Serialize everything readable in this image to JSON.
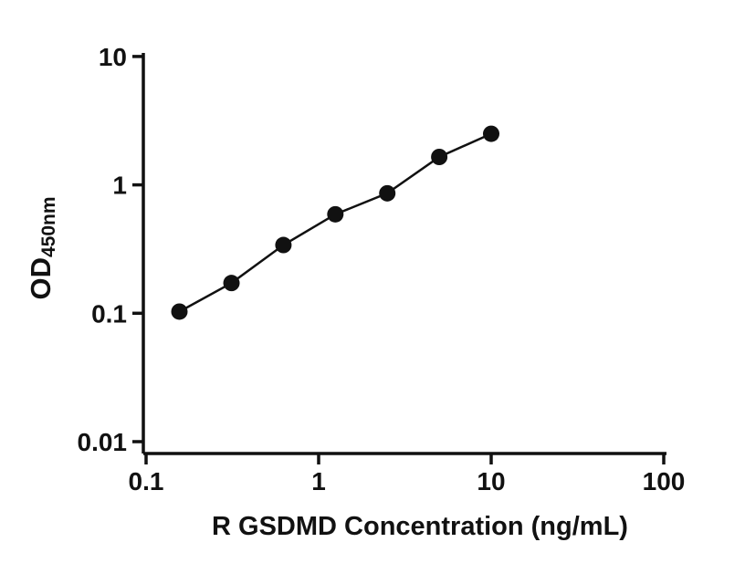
{
  "chart_data": {
    "type": "scatter",
    "title": "",
    "xlabel": "R GSDMD Concentration (ng/mL)",
    "ylabel": "OD",
    "ylabel_subscript": "450nm",
    "x_scale": "log",
    "y_scale": "log",
    "xlim": [
      0.1,
      100
    ],
    "ylim": [
      0.01,
      10
    ],
    "x_ticks": [
      "0.1",
      "1",
      "10",
      "100"
    ],
    "x_tick_values": [
      0.1,
      1,
      10,
      100
    ],
    "y_ticks": [
      "0.01",
      "0.1",
      "1",
      "10"
    ],
    "y_tick_values": [
      0.01,
      0.1,
      1,
      10
    ],
    "grid": "off",
    "legend": "none",
    "line": true,
    "x": [
      0.156,
      0.3125,
      0.625,
      1.25,
      2.5,
      5,
      10
    ],
    "y": [
      0.103,
      0.172,
      0.34,
      0.59,
      0.86,
      1.65,
      2.5
    ],
    "marker_color": "#111111",
    "line_color": "#111111",
    "axis_color": "#111111"
  }
}
